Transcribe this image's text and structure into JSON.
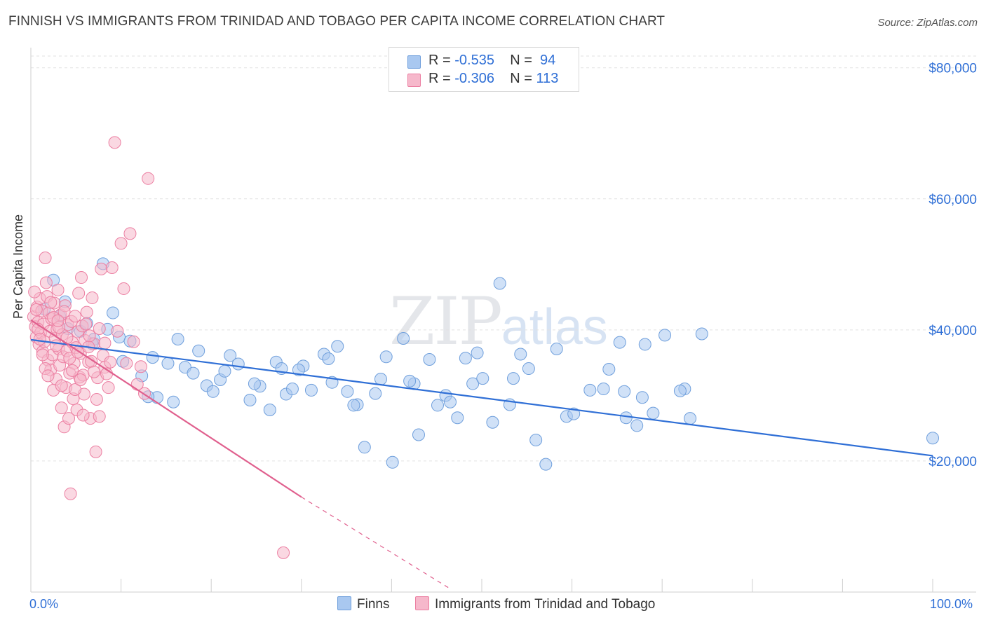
{
  "title": "FINNISH VS IMMIGRANTS FROM TRINIDAD AND TOBAGO PER CAPITA INCOME CORRELATION CHART",
  "source": "Source: ZipAtlas.com",
  "watermark": {
    "zip": "ZIP",
    "atlas": "atlas"
  },
  "legend": {
    "r_label": "R =",
    "n_label": "N =",
    "rows": [
      {
        "r": "-0.535",
        "n": "94",
        "color": "#a9c8f0"
      },
      {
        "r": "-0.306",
        "n": "113",
        "color": "#f6b8cb"
      }
    ]
  },
  "bottom_legend": {
    "finns": "Finns",
    "tt": "Immigrants from Trinidad and Tobago"
  },
  "colors": {
    "finns_fill": "#a9c8f0",
    "finns_stroke": "#6f9fdc",
    "finns_line": "#2f6fd6",
    "tt_fill": "#f6b8cb",
    "tt_stroke": "#ec7fa2",
    "tt_line": "#e0608e",
    "axis_text": "#2f6fd6",
    "grid": "#e2e2e2"
  },
  "chart_data": {
    "type": "scatter",
    "title": "FINNISH VS IMMIGRANTS FROM TRINIDAD AND TOBAGO PER CAPITA INCOME CORRELATION CHART",
    "xlabel": "",
    "ylabel": "Per Capita Income",
    "xlim": [
      0,
      100
    ],
    "ylim": [
      0,
      80000
    ],
    "x_tick_labels": [
      "0.0%",
      "100.0%"
    ],
    "y_ticks": [
      20000,
      40000,
      60000,
      80000
    ],
    "y_tick_labels": [
      "$20,000",
      "$40,000",
      "$60,000",
      "$80,000"
    ],
    "grid": true,
    "legend_position": "top-center",
    "series": [
      {
        "name": "Finns",
        "r": -0.535,
        "n": 94,
        "trend": [
          [
            0,
            38500
          ],
          [
            100,
            20800
          ]
        ],
        "points": [
          [
            1.5,
            43200
          ],
          [
            3.2,
            42100
          ],
          [
            4.1,
            40200
          ],
          [
            5.5,
            39800
          ],
          [
            6.2,
            41000
          ],
          [
            7.0,
            38600
          ],
          [
            8.5,
            40100
          ],
          [
            9.1,
            42600
          ],
          [
            10.2,
            35200
          ],
          [
            11.0,
            38300
          ],
          [
            12.3,
            33000
          ],
          [
            13.5,
            35800
          ],
          [
            14.0,
            29700
          ],
          [
            15.2,
            34900
          ],
          [
            16.3,
            38600
          ],
          [
            17.1,
            34300
          ],
          [
            18.0,
            33400
          ],
          [
            19.5,
            31500
          ],
          [
            20.2,
            30600
          ],
          [
            21.0,
            32400
          ],
          [
            22.1,
            36100
          ],
          [
            23.0,
            34800
          ],
          [
            24.3,
            29300
          ],
          [
            25.4,
            31400
          ],
          [
            26.5,
            27800
          ],
          [
            27.2,
            35100
          ],
          [
            28.3,
            30200
          ],
          [
            29.0,
            31000
          ],
          [
            30.2,
            34500
          ],
          [
            31.1,
            30800
          ],
          [
            32.5,
            36300
          ],
          [
            33.4,
            32000
          ],
          [
            34.0,
            37500
          ],
          [
            35.1,
            30600
          ],
          [
            36.2,
            28600
          ],
          [
            37.0,
            22100
          ],
          [
            38.2,
            30300
          ],
          [
            39.4,
            35900
          ],
          [
            40.1,
            19800
          ],
          [
            41.3,
            38700
          ],
          [
            42.5,
            31800
          ],
          [
            43.0,
            24000
          ],
          [
            44.2,
            35500
          ],
          [
            45.1,
            28500
          ],
          [
            46.0,
            30000
          ],
          [
            47.3,
            26600
          ],
          [
            48.2,
            35700
          ],
          [
            49.0,
            31800
          ],
          [
            50.1,
            32600
          ],
          [
            51.2,
            25900
          ],
          [
            52.0,
            47100
          ],
          [
            53.1,
            28600
          ],
          [
            54.3,
            36300
          ],
          [
            55.2,
            34100
          ],
          [
            56.0,
            23200
          ],
          [
            57.1,
            19500
          ],
          [
            58.3,
            37100
          ],
          [
            59.4,
            26800
          ],
          [
            60.2,
            27200
          ],
          [
            62.0,
            30800
          ],
          [
            63.5,
            31000
          ],
          [
            64.1,
            34000
          ],
          [
            65.3,
            38100
          ],
          [
            66.0,
            26600
          ],
          [
            67.2,
            25400
          ],
          [
            68.1,
            37800
          ],
          [
            69.0,
            27300
          ],
          [
            70.3,
            39200
          ],
          [
            72.5,
            31000
          ],
          [
            73.1,
            26500
          ],
          [
            74.4,
            39400
          ],
          [
            8.0,
            50100
          ],
          [
            2.5,
            47600
          ],
          [
            3.8,
            44300
          ],
          [
            6.8,
            37900
          ],
          [
            9.8,
            38900
          ],
          [
            13.0,
            29800
          ],
          [
            15.8,
            29000
          ],
          [
            18.6,
            36800
          ],
          [
            21.5,
            33700
          ],
          [
            24.8,
            31800
          ],
          [
            27.8,
            34100
          ],
          [
            29.7,
            33900
          ],
          [
            33.0,
            35600
          ],
          [
            35.8,
            28500
          ],
          [
            38.8,
            32500
          ],
          [
            42.0,
            32200
          ],
          [
            46.5,
            29000
          ],
          [
            49.5,
            36500
          ],
          [
            53.5,
            32600
          ],
          [
            65.8,
            30600
          ],
          [
            67.8,
            29700
          ],
          [
            72.0,
            30700
          ],
          [
            100.0,
            23500
          ]
        ]
      },
      {
        "name": "Immigrants from Trinidad and Tobago",
        "r": -0.306,
        "n": 113,
        "trend": [
          [
            0,
            41500
          ],
          [
            30,
            14500
          ]
        ],
        "trend_dashed": [
          [
            30,
            14500
          ],
          [
            46.5,
            500
          ]
        ],
        "points": [
          [
            0.3,
            42000
          ],
          [
            0.5,
            40500
          ],
          [
            0.6,
            38900
          ],
          [
            0.7,
            43500
          ],
          [
            0.8,
            41200
          ],
          [
            0.9,
            37800
          ],
          [
            1.0,
            44800
          ],
          [
            1.1,
            39600
          ],
          [
            1.2,
            42900
          ],
          [
            1.3,
            36700
          ],
          [
            1.4,
            40900
          ],
          [
            1.5,
            38200
          ],
          [
            1.6,
            51000
          ],
          [
            1.7,
            47200
          ],
          [
            1.8,
            45100
          ],
          [
            1.9,
            35400
          ],
          [
            2.0,
            42600
          ],
          [
            2.1,
            39800
          ],
          [
            2.2,
            33900
          ],
          [
            2.3,
            41700
          ],
          [
            2.4,
            36200
          ],
          [
            2.5,
            30800
          ],
          [
            2.6,
            44100
          ],
          [
            2.7,
            38700
          ],
          [
            2.8,
            32500
          ],
          [
            2.9,
            40100
          ],
          [
            3.0,
            46100
          ],
          [
            3.1,
            37100
          ],
          [
            3.2,
            34600
          ],
          [
            3.3,
            42300
          ],
          [
            3.4,
            28100
          ],
          [
            3.5,
            39300
          ],
          [
            3.6,
            35900
          ],
          [
            3.7,
            25200
          ],
          [
            3.8,
            43700
          ],
          [
            3.9,
            31200
          ],
          [
            4.0,
            36800
          ],
          [
            4.1,
            40800
          ],
          [
            4.2,
            26500
          ],
          [
            4.3,
            33400
          ],
          [
            4.4,
            15000
          ],
          [
            4.5,
            41300
          ],
          [
            4.6,
            38100
          ],
          [
            4.7,
            29500
          ],
          [
            4.8,
            34900
          ],
          [
            4.9,
            42100
          ],
          [
            5.0,
            37300
          ],
          [
            5.1,
            27800
          ],
          [
            5.2,
            39700
          ],
          [
            5.3,
            45600
          ],
          [
            5.4,
            32800
          ],
          [
            5.5,
            36400
          ],
          [
            5.6,
            48000
          ],
          [
            5.7,
            40600
          ],
          [
            5.8,
            33100
          ],
          [
            5.9,
            30200
          ],
          [
            6.0,
            38400
          ],
          [
            6.2,
            42700
          ],
          [
            6.4,
            35100
          ],
          [
            6.6,
            26500
          ],
          [
            6.8,
            44900
          ],
          [
            7.0,
            37900
          ],
          [
            7.2,
            21400
          ],
          [
            7.4,
            32700
          ],
          [
            7.6,
            40200
          ],
          [
            7.8,
            49300
          ],
          [
            8.0,
            36100
          ],
          [
            8.2,
            34300
          ],
          [
            8.4,
            33300
          ],
          [
            8.6,
            31200
          ],
          [
            8.8,
            35100
          ],
          [
            9.0,
            49500
          ],
          [
            9.3,
            68600
          ],
          [
            9.6,
            39800
          ],
          [
            10.0,
            53200
          ],
          [
            10.3,
            46300
          ],
          [
            10.6,
            34900
          ],
          [
            11.0,
            54700
          ],
          [
            11.4,
            38200
          ],
          [
            11.8,
            31700
          ],
          [
            12.2,
            34400
          ],
          [
            12.6,
            30300
          ],
          [
            13.0,
            63100
          ],
          [
            0.4,
            45800
          ],
          [
            0.6,
            43100
          ],
          [
            0.8,
            40100
          ],
          [
            1.0,
            38600
          ],
          [
            1.3,
            36200
          ],
          [
            1.6,
            34100
          ],
          [
            1.9,
            33000
          ],
          [
            2.2,
            44200
          ],
          [
            2.5,
            41900
          ],
          [
            2.8,
            37600
          ],
          [
            3.1,
            40400
          ],
          [
            3.4,
            31500
          ],
          [
            3.7,
            42800
          ],
          [
            4.0,
            38800
          ],
          [
            4.3,
            35700
          ],
          [
            4.6,
            33800
          ],
          [
            4.9,
            30900
          ],
          [
            5.2,
            36600
          ],
          [
            5.5,
            32400
          ],
          [
            5.8,
            27000
          ],
          [
            6.1,
            40900
          ],
          [
            6.4,
            37400
          ],
          [
            6.7,
            35200
          ],
          [
            7.0,
            33600
          ],
          [
            7.3,
            29400
          ],
          [
            7.6,
            26800
          ],
          [
            8.2,
            38000
          ],
          [
            28.0,
            6000
          ],
          [
            3.0,
            41400
          ],
          [
            6.5,
            39100
          ]
        ]
      }
    ]
  }
}
